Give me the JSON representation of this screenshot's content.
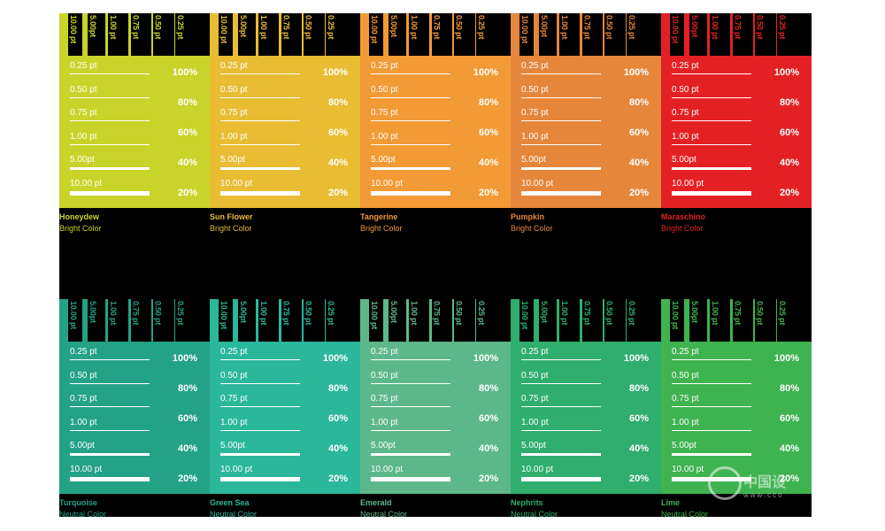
{
  "strip_labels": [
    "10.00 pt",
    "5.00pt",
    "1.00 pt",
    "0.75 pt",
    "0.50 pt",
    "0.25 pt"
  ],
  "row_labels": [
    "0.25 pt",
    "0.50 pt",
    "0.75 pt",
    "1.00 pt",
    "5.00pt",
    "10.00 pt"
  ],
  "percents": [
    "100%",
    "80%",
    "60%",
    "40%",
    "20%"
  ],
  "top_row": [
    {
      "name": "Honeydew",
      "type": "Bright Color",
      "color": "#c9d42a"
    },
    {
      "name": "Sun Flower",
      "type": "Bright Color",
      "color": "#e8bd34"
    },
    {
      "name": "Tangerine",
      "type": "Bright Color",
      "color": "#f29a35"
    },
    {
      "name": "Pumpkin",
      "type": "Bright Color",
      "color": "#e6863a"
    },
    {
      "name": "Maraschino",
      "type": "Bright Color",
      "color": "#e32125"
    }
  ],
  "bottom_row": [
    {
      "name": "Turquoise",
      "type": "Neutral Color",
      "color": "#24a286"
    },
    {
      "name": "Green Sea",
      "type": "Neutral Color",
      "color": "#2bb79a"
    },
    {
      "name": "Emerald",
      "type": "Neutral Color",
      "color": "#5cb88a"
    },
    {
      "name": "Nephrits",
      "type": "Neutral Color",
      "color": "#2fae6d"
    },
    {
      "name": "Lime",
      "type": "Neutral Color",
      "color": "#3fb34f"
    }
  ],
  "watermark": {
    "text": "中国设",
    "url": "www.cco"
  }
}
